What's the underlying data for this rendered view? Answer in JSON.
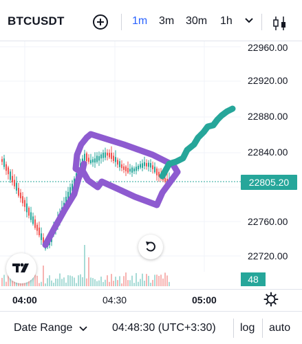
{
  "header": {
    "symbol": "BTCUSDT",
    "intervals": [
      "1m",
      "3m",
      "30m",
      "1h"
    ],
    "active_interval": "1m"
  },
  "chart": {
    "price_labels": [
      "22960.00",
      "22920.00",
      "22880.00",
      "22840.00",
      "22760.00",
      "22720.00"
    ],
    "last_price": "22805.20",
    "volume_value": "48",
    "time_labels": [
      "04:00",
      "04:30",
      "05:00"
    ],
    "colors": {
      "up": "#26a69a",
      "down": "#ef5350",
      "annotation_purple": "#8e5bd0",
      "annotation_teal": "#26a69a"
    }
  },
  "footer": {
    "date_range": "Date Range",
    "time": "04:48:30 (UTC+3:30)",
    "log": "log",
    "auto": "auto"
  }
}
